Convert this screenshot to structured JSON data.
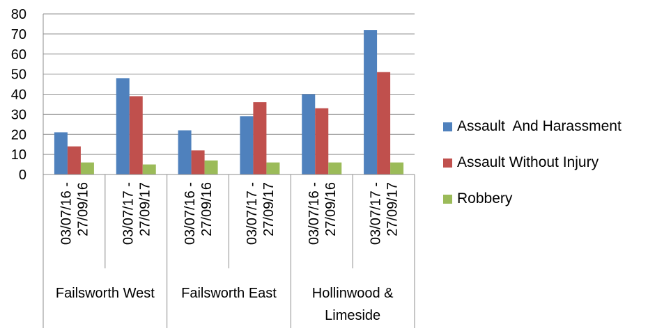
{
  "chart_data": {
    "type": "bar",
    "groups": [
      {
        "label": "Failsworth West",
        "periods": [
          "03/07/16 - 27/09/16",
          "03/07/17 - 27/09/17"
        ]
      },
      {
        "label": "Failsworth East",
        "periods": [
          "03/07/16 - 27/09/16",
          "03/07/17 - 27/09/17"
        ]
      },
      {
        "label": "Hollinwood & Limeside",
        "periods": [
          "03/07/16 - 27/09/16",
          "03/07/17 - 27/09/17"
        ]
      }
    ],
    "categories": [
      "Failsworth West 03/07/16 - 27/09/16",
      "Failsworth West 03/07/17 - 27/09/17",
      "Failsworth East 03/07/16 - 27/09/16",
      "Failsworth East 03/07/17 - 27/09/17",
      "Hollinwood & Limeside 03/07/16 - 27/09/16",
      "Hollinwood & Limeside 03/07/17 - 27/09/17"
    ],
    "series": [
      {
        "name": "Assault  And Harassment",
        "color": "#4f81bd",
        "values": [
          21,
          48,
          22,
          29,
          40,
          72
        ]
      },
      {
        "name": "Assault Without Injury",
        "color": "#c0504d",
        "values": [
          14,
          39,
          12,
          36,
          33,
          51
        ]
      },
      {
        "name": "Robbery",
        "color": "#9bbb59",
        "values": [
          6,
          5,
          7,
          6,
          6,
          6
        ]
      }
    ],
    "ylim": [
      0,
      80
    ],
    "yticks": [
      0,
      10,
      20,
      30,
      40,
      50,
      60,
      70,
      80
    ],
    "grid": true,
    "legend_position": "right",
    "title": "",
    "xlabel": "",
    "ylabel": ""
  }
}
